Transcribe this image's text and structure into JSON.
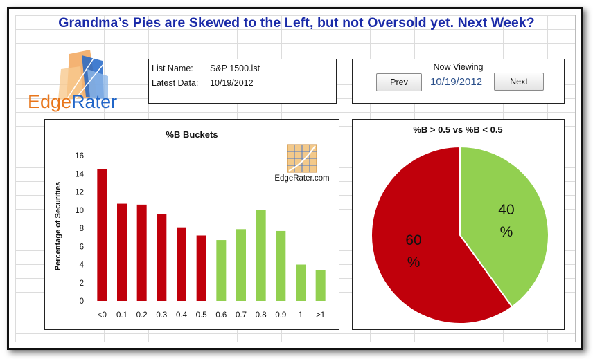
{
  "headline": "Grandma’s Pies are Skewed to the Left, but not Oversold yet.  Next Week?",
  "logo": {
    "wordmark_left": "Edge",
    "wordmark_right": "Rater"
  },
  "info": {
    "list_label": "List Name:",
    "list_value": "S&P 1500.lst",
    "data_label": "Latest Data:",
    "data_value": "10/19/2012"
  },
  "nav": {
    "title": "Now Viewing",
    "date": "10/19/2012",
    "prev_label": "Prev",
    "next_label": "Next"
  },
  "watermark_text": "EdgeRater.com",
  "colors": {
    "red": "#c0000b",
    "green": "#92d050",
    "title": "#1a2aa8"
  },
  "chart_data": [
    {
      "type": "bar",
      "title": "%B Buckets",
      "ylabel": "Percentage of Securities",
      "xlabel": "",
      "ylim": [
        0,
        16
      ],
      "yticks": [
        0,
        2,
        4,
        6,
        8,
        10,
        12,
        14,
        16
      ],
      "grid": false,
      "categories": [
        "<0",
        "0.1",
        "0.2",
        "0.3",
        "0.4",
        "0.5",
        "0.6",
        "0.7",
        "0.8",
        "0.9",
        "1",
        ">1"
      ],
      "values": [
        14.5,
        10.7,
        10.6,
        9.6,
        8.1,
        7.2,
        6.7,
        7.9,
        10.0,
        7.7,
        4.0,
        3.4
      ],
      "bar_colors": [
        "red",
        "red",
        "red",
        "red",
        "red",
        "red",
        "green",
        "green",
        "green",
        "green",
        "green",
        "green"
      ]
    },
    {
      "type": "pie",
      "title": "%B > 0.5 vs %B < 0.5",
      "slices": [
        {
          "label_top": "40",
          "label_bottom": "%",
          "value": 40,
          "color": "green"
        },
        {
          "label_top": "60",
          "label_bottom": "%",
          "value": 60,
          "color": "red"
        }
      ]
    }
  ]
}
